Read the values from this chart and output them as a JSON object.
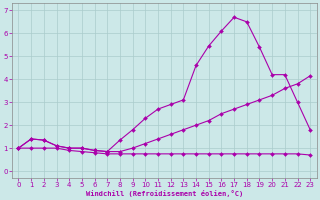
{
  "xlabel": "Windchill (Refroidissement éolien,°C)",
  "background_color": "#cce8e8",
  "grid_color": "#aacccc",
  "line_color": "#aa00aa",
  "xlim": [
    -0.5,
    23.5
  ],
  "ylim": [
    -0.3,
    7.3
  ],
  "xticks": [
    0,
    1,
    2,
    3,
    4,
    5,
    6,
    7,
    8,
    9,
    10,
    11,
    12,
    13,
    14,
    15,
    16,
    17,
    18,
    19,
    20,
    21,
    22,
    23
  ],
  "yticks": [
    0,
    1,
    2,
    3,
    4,
    5,
    6,
    7
  ],
  "series_flat_x": [
    0,
    1,
    2,
    3,
    4,
    5,
    6,
    7,
    8,
    9,
    10,
    11,
    12,
    13,
    14,
    15,
    16,
    17,
    18,
    19,
    20,
    21,
    22,
    23
  ],
  "series_flat_y": [
    1.0,
    1.0,
    1.0,
    1.0,
    0.9,
    0.85,
    0.8,
    0.75,
    0.75,
    0.75,
    0.75,
    0.75,
    0.75,
    0.75,
    0.75,
    0.75,
    0.75,
    0.75,
    0.75,
    0.75,
    0.75,
    0.75,
    0.75,
    0.7
  ],
  "series_diag_x": [
    0,
    1,
    2,
    3,
    4,
    5,
    6,
    7,
    8,
    9,
    10,
    11,
    12,
    13,
    14,
    15,
    16,
    17,
    18,
    19,
    20,
    21,
    22,
    23
  ],
  "series_diag_y": [
    1.0,
    1.4,
    1.35,
    1.1,
    1.0,
    1.0,
    0.9,
    0.85,
    0.85,
    1.0,
    1.2,
    1.4,
    1.6,
    1.8,
    2.0,
    2.2,
    2.5,
    2.7,
    2.9,
    3.1,
    3.3,
    3.6,
    3.8,
    4.15
  ],
  "series_peak_x": [
    0,
    1,
    2,
    3,
    4,
    5,
    6,
    7,
    8,
    9,
    10,
    11,
    12,
    13,
    14,
    15,
    16,
    17,
    18,
    19,
    20,
    21,
    22,
    23
  ],
  "series_peak_y": [
    1.0,
    1.4,
    1.35,
    1.1,
    1.0,
    1.0,
    0.9,
    0.85,
    1.35,
    1.8,
    2.3,
    2.7,
    2.9,
    3.1,
    4.6,
    5.45,
    6.1,
    6.7,
    6.5,
    5.4,
    4.2,
    4.2,
    3.0,
    1.8
  ],
  "marker": "D",
  "markersize": 2.0,
  "linewidth": 0.8,
  "tick_fontsize": 5,
  "xlabel_fontsize": 5
}
